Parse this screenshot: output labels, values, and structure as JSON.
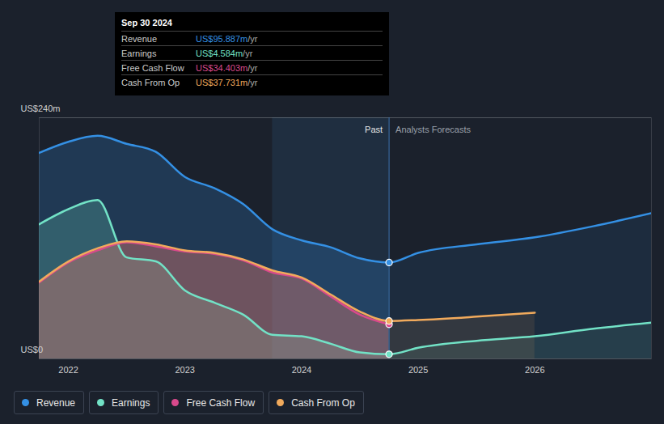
{
  "chart_data": {
    "type": "area",
    "x": [
      2021.75,
      2022.0,
      2022.25,
      2022.5,
      2022.75,
      2023.0,
      2023.25,
      2023.5,
      2023.75,
      2024.0,
      2024.25,
      2024.5,
      2024.75,
      2025.0,
      2025.5,
      2026.0,
      2026.5,
      2027.0
    ],
    "xlim": [
      2021.75,
      2027.0
    ],
    "xticks": [
      2022,
      2023,
      2024,
      2025,
      2026
    ],
    "ylim": [
      0,
      240
    ],
    "yticks": [
      {
        "value": 0,
        "label": "US$0"
      },
      {
        "value": 240,
        "label": "US$240m"
      }
    ],
    "grid": true,
    "legend": "bottom",
    "series": [
      {
        "name": "Revenue",
        "color": "#3490e4",
        "values": [
          205,
          216,
          222,
          214,
          206,
          181,
          170,
          154,
          129,
          118,
          111,
          100,
          95.887,
          105.5,
          114,
          121,
          132,
          145
        ]
      },
      {
        "name": "Earnings",
        "color": "#72e2c6",
        "values": [
          134,
          149,
          158,
          101,
          97,
          68,
          56,
          44,
          24,
          22.5,
          15,
          6.4,
          4.584,
          11,
          18,
          22.5,
          30,
          36
        ]
      },
      {
        "name": "Free Cash Flow",
        "color": "#d9498c",
        "values": [
          76,
          96,
          108,
          116,
          112,
          107,
          104.5,
          98,
          86,
          80,
          62,
          44,
          34.403,
          null,
          null,
          null,
          null,
          null
        ]
      },
      {
        "name": "Cash From Op",
        "color": "#f1aa5c",
        "values": [
          77,
          97,
          110,
          117,
          114,
          108,
          105.5,
          99,
          88,
          81,
          64,
          47,
          37.731,
          38.7,
          42,
          46,
          null,
          null
        ]
      }
    ],
    "highlight": [
      2023.75,
      2024.75
    ],
    "divider": {
      "x": 2024.75,
      "left_label": "Past",
      "right_label": "Analysts Forecasts"
    },
    "tooltip": {
      "title": "Sep 30 2024",
      "x": 2024.75,
      "suffix": "/yr",
      "rows": [
        {
          "series": "Revenue",
          "label": "US$95.887m"
        },
        {
          "series": "Earnings",
          "label": "US$4.584m"
        },
        {
          "series": "Free Cash Flow",
          "label": "US$34.403m"
        },
        {
          "series": "Cash From Op",
          "label": "US$37.731m"
        }
      ]
    }
  }
}
